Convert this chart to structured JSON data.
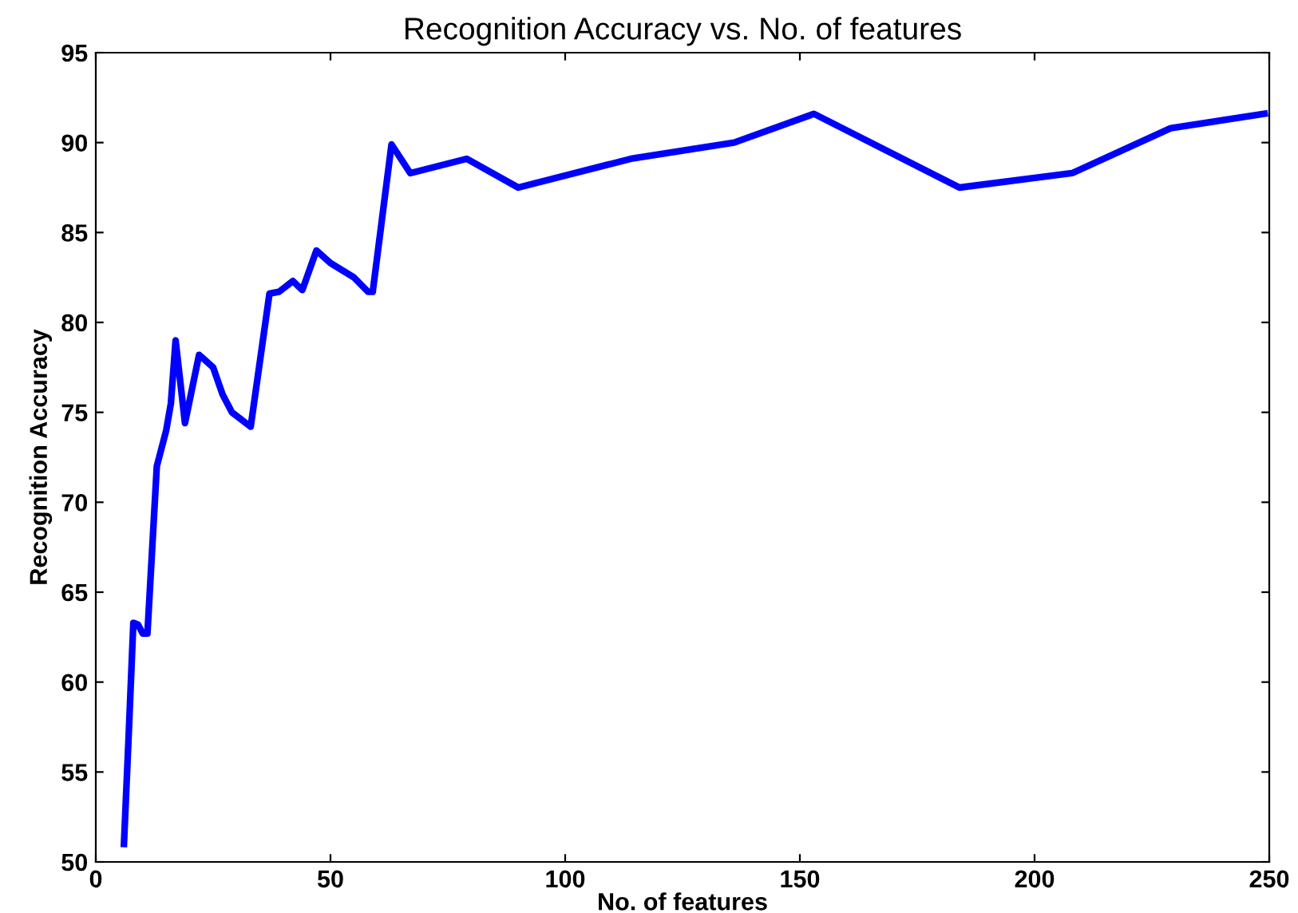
{
  "chart_data": {
    "type": "line",
    "title": "Recognition Accuracy vs. No. of features",
    "xlabel": "No. of features",
    "ylabel": "Recognition Accuracy",
    "x": [
      6,
      7,
      8,
      9,
      10,
      11,
      13,
      15,
      16,
      17,
      19,
      22,
      25,
      27,
      29,
      33,
      37,
      39,
      42,
      44,
      47,
      50,
      55,
      58,
      59,
      63,
      67,
      79,
      90,
      114,
      136,
      153,
      184,
      208,
      229,
      249
    ],
    "series": [
      {
        "color": "#0000ff",
        "values": [
          51,
          57,
          63.3,
          63.2,
          62.7,
          62.7,
          72,
          74,
          75.5,
          79,
          74.4,
          78.2,
          77.5,
          76,
          75,
          74.2,
          81.6,
          81.7,
          82.3,
          81.8,
          84,
          83.3,
          82.5,
          81.7,
          81.7,
          89.9,
          88.3,
          89.1,
          87.5,
          89.1,
          90,
          91.6,
          87.5,
          88.3,
          90.8,
          91.6
        ]
      }
    ],
    "xlim": [
      0,
      250
    ],
    "xticks": [
      0,
      50,
      100,
      150,
      200,
      250
    ],
    "ylim": [
      50,
      95
    ],
    "yticks": [
      50,
      55,
      60,
      65,
      70,
      75,
      80,
      85,
      90,
      95
    ],
    "grid": false,
    "legend": false,
    "marker": "none",
    "line_style": "solid"
  }
}
